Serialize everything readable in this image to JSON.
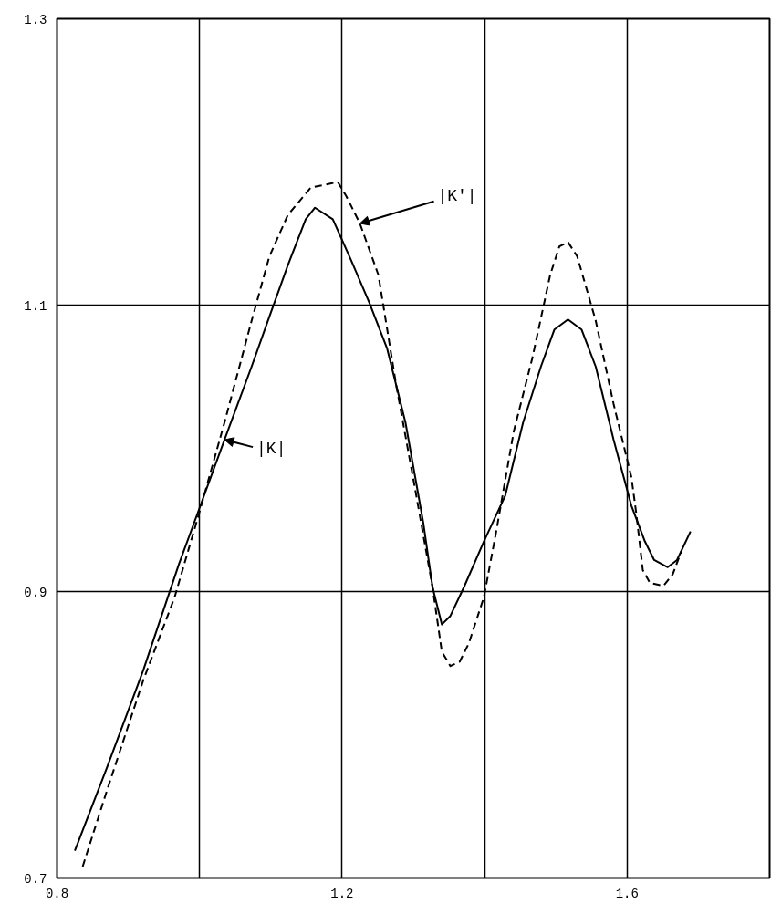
{
  "chart_data": {
    "type": "line",
    "xlim": [
      0.8,
      1.8
    ],
    "ylim": [
      0.7,
      1.3
    ],
    "xticks": [
      0.8,
      {
        "value": 1.0,
        "label": null
      },
      1.2,
      {
        "value": 1.4,
        "label": null
      },
      1.6
    ],
    "yticks": [
      0.7,
      {
        "value": 0.9,
        "label": "0.9"
      },
      {
        "value": 1.1,
        "label": "1.1"
      },
      1.3
    ],
    "grid": true,
    "marker": "none",
    "series": [
      {
        "color": "#000000",
        "line_style": "solid",
        "x": [
          0.825,
          0.87,
          0.921,
          0.971,
          0.999,
          1.035,
          1.073,
          1.098,
          1.124,
          1.149,
          1.162,
          1.187,
          1.213,
          1.238,
          1.263,
          1.289,
          1.314,
          1.327,
          1.34,
          1.352,
          1.371,
          1.399,
          1.429,
          1.454,
          1.479,
          1.498,
          1.517,
          1.536,
          1.556,
          1.581,
          1.606,
          1.625,
          1.638,
          1.657,
          1.67,
          1.689
        ],
        "values": [
          0.719,
          0.777,
          0.845,
          0.919,
          0.957,
          1.006,
          1.057,
          1.092,
          1.128,
          1.16,
          1.168,
          1.16,
          1.131,
          1.102,
          1.07,
          1.018,
          0.948,
          0.903,
          0.877,
          0.883,
          0.903,
          0.935,
          0.967,
          1.018,
          1.057,
          1.083,
          1.09,
          1.083,
          1.057,
          1.006,
          0.96,
          0.935,
          0.922,
          0.917,
          0.922,
          0.942
        ]
      },
      {
        "color": "#000000",
        "line_style": "dashed",
        "x": [
          0.836,
          0.87,
          0.921,
          0.965,
          0.999,
          1.035,
          1.073,
          1.098,
          1.124,
          1.156,
          1.194,
          1.206,
          1.225,
          1.251,
          1.276,
          1.302,
          1.327,
          1.34,
          1.352,
          1.365,
          1.378,
          1.399,
          1.416,
          1.441,
          1.467,
          1.492,
          1.505,
          1.517,
          1.53,
          1.556,
          1.581,
          1.606,
          1.613,
          1.622,
          1.632,
          1.651,
          1.664,
          1.676
        ],
        "values": [
          0.708,
          0.761,
          0.838,
          0.896,
          0.954,
          1.018,
          1.089,
          1.134,
          1.163,
          1.182,
          1.186,
          1.176,
          1.157,
          1.121,
          1.044,
          0.973,
          0.903,
          0.858,
          0.848,
          0.851,
          0.864,
          0.896,
          0.941,
          1.012,
          1.063,
          1.121,
          1.141,
          1.144,
          1.134,
          1.089,
          1.031,
          0.98,
          0.954,
          0.915,
          0.906,
          0.904,
          0.912,
          0.928
        ]
      }
    ],
    "annotations": [
      {
        "text": "|K'|",
        "x": 1.225,
        "y": 1.157
      },
      {
        "text": "|K|",
        "x": 1.035,
        "y": 1.006
      }
    ]
  }
}
